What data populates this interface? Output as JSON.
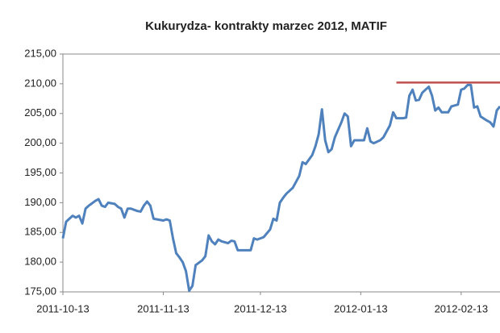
{
  "chart_data": {
    "type": "line",
    "title": "Kukurydza- kontrakty marzec 2012, MATIF",
    "x": [
      "2011-10-13",
      "2011-10-14",
      "2011-10-15",
      "2011-10-16",
      "2011-10-17",
      "2011-10-18",
      "2011-10-19",
      "2011-10-20",
      "2011-10-21",
      "2011-10-23",
      "2011-10-24",
      "2011-10-25",
      "2011-10-26",
      "2011-10-27",
      "2011-10-29",
      "2011-10-30",
      "2011-10-31",
      "2011-11-01",
      "2011-11-02",
      "2011-11-03",
      "2011-11-05",
      "2011-11-06",
      "2011-11-07",
      "2011-11-08",
      "2011-11-09",
      "2011-11-10",
      "2011-11-11",
      "2011-11-13",
      "2011-11-14",
      "2011-11-15",
      "2011-11-16",
      "2011-11-17",
      "2011-11-18",
      "2011-11-19",
      "2011-11-20",
      "2011-11-21",
      "2011-11-22",
      "2011-11-23",
      "2011-11-25",
      "2011-11-26",
      "2011-11-27",
      "2011-11-28",
      "2011-11-29",
      "2011-11-30",
      "2011-12-01",
      "2011-12-03",
      "2011-12-04",
      "2011-12-05",
      "2011-12-06",
      "2011-12-08",
      "2011-12-09",
      "2011-12-10",
      "2011-12-11",
      "2011-12-12",
      "2011-12-13",
      "2011-12-14",
      "2011-12-16",
      "2011-12-17",
      "2011-12-18",
      "2011-12-19",
      "2011-12-20",
      "2011-12-21",
      "2011-12-23",
      "2011-12-24",
      "2011-12-25",
      "2011-12-26",
      "2011-12-27",
      "2011-12-29",
      "2011-12-30",
      "2011-12-31",
      "2012-01-01",
      "2012-01-02",
      "2012-01-03",
      "2012-01-04",
      "2012-01-05",
      "2012-01-07",
      "2012-01-08",
      "2012-01-09",
      "2012-01-10",
      "2012-01-11",
      "2012-01-12",
      "2012-01-13",
      "2012-01-14",
      "2012-01-15",
      "2012-01-16",
      "2012-01-17",
      "2012-01-19",
      "2012-01-20",
      "2012-01-21",
      "2012-01-22",
      "2012-01-23",
      "2012-01-24",
      "2012-01-26",
      "2012-01-27",
      "2012-01-28",
      "2012-01-29",
      "2012-01-30",
      "2012-01-31",
      "2012-02-01",
      "2012-02-03",
      "2012-02-04",
      "2012-02-05",
      "2012-02-06",
      "2012-02-07",
      "2012-02-08",
      "2012-02-09",
      "2012-02-10",
      "2012-02-12",
      "2012-02-13",
      "2012-02-14",
      "2012-02-15",
      "2012-02-16",
      "2012-02-17",
      "2012-02-18",
      "2012-02-19",
      "2012-02-21",
      "2012-02-22",
      "2012-02-23",
      "2012-02-24",
      "2012-02-25"
    ],
    "series": [
      {
        "color": "#4f81bd",
        "values": [
          184,
          186.8,
          187.3,
          187.8,
          187.5,
          187.8,
          186.5,
          189,
          189.5,
          190.3,
          190.6,
          189.5,
          189.3,
          190,
          189.8,
          189.3,
          189,
          187.5,
          189,
          189,
          188.6,
          188.5,
          189.5,
          190.2,
          189.5,
          187.3,
          187.2,
          187,
          187.2,
          187,
          184,
          181.5,
          180.8,
          180,
          178.5,
          175.2,
          176,
          179.5,
          180.3,
          181,
          184.5,
          183.5,
          183,
          183.8,
          183.5,
          183.2,
          183.6,
          183.5,
          182,
          182,
          182,
          182,
          184,
          183.8,
          184,
          184.2,
          185.5,
          187.3,
          187,
          190,
          190.8,
          191.5,
          192.5,
          193.5,
          194.5,
          196.8,
          196.5,
          198,
          199.5,
          201.5,
          205.7,
          200.5,
          198.5,
          199,
          201,
          203.5,
          205,
          204.5,
          199.5,
          200.5,
          200.5,
          200.5,
          200.5,
          202.5,
          200.3,
          200,
          200.5,
          201,
          202,
          203,
          205.2,
          204.2,
          204.2,
          204.3,
          208,
          209,
          207.2,
          207.3,
          208.5,
          209.5,
          208,
          205.5,
          206,
          205.2,
          205.2,
          205.2,
          206.2,
          206.5,
          209,
          209.2,
          209.8,
          209.8,
          206,
          206.2,
          204.5,
          203.8,
          203.5,
          202.8,
          205.5,
          206.2
        ]
      },
      {
        "color": "#c0504d",
        "x": [
          "2012-01-24",
          "2012-02-25"
        ],
        "values": [
          210.2,
          210.2
        ]
      }
    ],
    "xlim": [
      "2011-10-13",
      "2012-02-25"
    ],
    "xticks": [
      "2011-10-13",
      "2011-11-13",
      "2011-12-13",
      "2012-01-13",
      "2012-02-13"
    ],
    "ylim": [
      175,
      215
    ],
    "yticks": [
      {
        "value": 175,
        "label": "175,00"
      },
      {
        "value": 180,
        "label": "180,00"
      },
      {
        "value": 185,
        "label": "185,00"
      },
      {
        "value": 190,
        "label": "190,00"
      },
      {
        "value": 195,
        "label": "195,00"
      },
      {
        "value": 200,
        "label": "200,00"
      },
      {
        "value": 205,
        "label": "205,00"
      },
      {
        "value": 210,
        "label": "210,00"
      },
      {
        "value": 215,
        "label": "215,00"
      }
    ],
    "grid": false
  }
}
